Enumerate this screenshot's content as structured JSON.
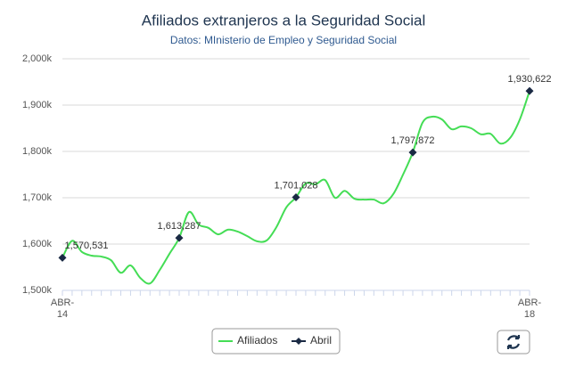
{
  "chart_data": {
    "type": "line",
    "title": "Afiliados extranjeros a la Seguridad Social",
    "subtitle": "Datos: MInisterio de Empleo y Seguridad Social",
    "categories": [
      "ABR-14",
      null,
      null,
      null,
      null,
      null,
      null,
      null,
      null,
      null,
      null,
      null,
      null,
      null,
      null,
      null,
      null,
      null,
      null,
      null,
      null,
      null,
      null,
      null,
      null,
      null,
      null,
      null,
      null,
      null,
      null,
      null,
      null,
      null,
      null,
      null,
      null,
      null,
      null,
      null,
      null,
      null,
      null,
      null,
      null,
      null,
      null,
      null,
      "ABR-18"
    ],
    "series": [
      {
        "name": "Afiliados",
        "color": "#44dd55",
        "values": [
          1570531,
          1607000,
          1583000,
          1575000,
          1573000,
          1565000,
          1538000,
          1554000,
          1527000,
          1515000,
          1544000,
          1579000,
          1613287,
          1669000,
          1642000,
          1635000,
          1621000,
          1631000,
          1627000,
          1617000,
          1606000,
          1608000,
          1637000,
          1679000,
          1701028,
          1731000,
          1729000,
          1738000,
          1700000,
          1715000,
          1698000,
          1696000,
          1696000,
          1688000,
          1708000,
          1750000,
          1797872,
          1862000,
          1875000,
          1869000,
          1848000,
          1854000,
          1850000,
          1837000,
          1838000,
          1817000,
          1829000,
          1869000,
          1930622
        ]
      },
      {
        "name": "Abril",
        "color": "#1a2a44",
        "values": [
          1570531,
          null,
          null,
          null,
          null,
          null,
          null,
          null,
          null,
          null,
          null,
          null,
          1613287,
          null,
          null,
          null,
          null,
          null,
          null,
          null,
          null,
          null,
          null,
          null,
          1701028,
          null,
          null,
          null,
          null,
          null,
          null,
          null,
          null,
          null,
          null,
          null,
          1797872,
          null,
          null,
          null,
          null,
          null,
          null,
          null,
          null,
          null,
          null,
          null,
          1930622
        ],
        "value_labels": [
          "1,570,531",
          null,
          null,
          null,
          null,
          null,
          null,
          null,
          null,
          null,
          null,
          null,
          "1,613,287",
          null,
          null,
          null,
          null,
          null,
          null,
          null,
          null,
          null,
          null,
          null,
          "1,701,028",
          null,
          null,
          null,
          null,
          null,
          null,
          null,
          null,
          null,
          null,
          null,
          "1,797,872",
          null,
          null,
          null,
          null,
          null,
          null,
          null,
          null,
          null,
          null,
          null,
          "1,930,622"
        ]
      }
    ],
    "ylim": [
      1500000,
      2000000
    ],
    "yticks": [
      {
        "value": 1500000,
        "label": "1,500k"
      },
      {
        "value": 1600000,
        "label": "1,600k"
      },
      {
        "value": 1700000,
        "label": "1,700k"
      },
      {
        "value": 1800000,
        "label": "1,800k"
      },
      {
        "value": 1900000,
        "label": "1,900k"
      },
      {
        "value": 2000000,
        "label": "2,000k"
      }
    ],
    "grid": true,
    "legend": "bottom"
  }
}
